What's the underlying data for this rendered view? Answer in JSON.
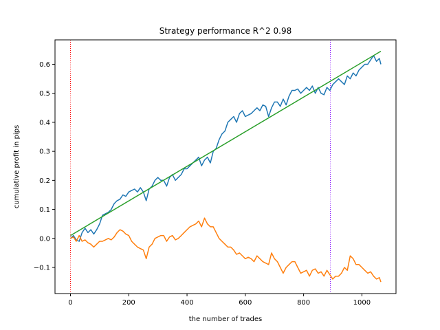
{
  "chart_data": {
    "type": "line",
    "title": "Strategy performance R^2 0.98",
    "xlabel": "the number of trades",
    "ylabel": "cumulative profit in pips",
    "xlim": [
      -53,
      1117
    ],
    "ylim": [
      -0.19,
      0.684
    ],
    "xticks": [
      0,
      200,
      400,
      600,
      800,
      1000
    ],
    "xtick_labels": [
      "0",
      "200",
      "400",
      "600",
      "800",
      "1000"
    ],
    "yticks": [
      -0.1,
      0.0,
      0.1,
      0.2,
      0.3,
      0.4,
      0.5,
      0.6
    ],
    "ytick_labels": [
      "−0.1",
      "0.0",
      "0.1",
      "0.2",
      "0.3",
      "0.4",
      "0.5",
      "0.6"
    ],
    "grid": false,
    "vlines": [
      {
        "x": 0,
        "color": "#ff0000",
        "style": "dotted"
      },
      {
        "x": 892,
        "color": "#8000ff",
        "style": "dotted"
      }
    ],
    "series": [
      {
        "color": "#1f77b4",
        "x": [
          0,
          10,
          20,
          30,
          40,
          50,
          60,
          70,
          80,
          90,
          100,
          110,
          120,
          130,
          140,
          150,
          160,
          170,
          180,
          190,
          200,
          210,
          220,
          230,
          240,
          250,
          260,
          270,
          280,
          290,
          300,
          310,
          320,
          330,
          340,
          350,
          360,
          370,
          380,
          390,
          400,
          410,
          420,
          430,
          440,
          450,
          460,
          470,
          480,
          490,
          500,
          510,
          520,
          530,
          540,
          550,
          560,
          570,
          580,
          590,
          600,
          610,
          620,
          630,
          640,
          650,
          660,
          670,
          680,
          690,
          700,
          710,
          720,
          730,
          740,
          750,
          760,
          770,
          780,
          790,
          800,
          810,
          820,
          830,
          840,
          850,
          860,
          870,
          880,
          890,
          900,
          910,
          920,
          930,
          940,
          950,
          960,
          970,
          980,
          990,
          1000,
          1010,
          1020,
          1030,
          1040,
          1050,
          1060,
          1065
        ],
        "values": [
          0.0,
          0.01,
          -0.005,
          -0.01,
          0.02,
          0.035,
          0.02,
          0.03,
          0.015,
          0.03,
          0.05,
          0.08,
          0.085,
          0.09,
          0.1,
          0.12,
          0.13,
          0.135,
          0.15,
          0.145,
          0.16,
          0.165,
          0.17,
          0.16,
          0.175,
          0.16,
          0.13,
          0.17,
          0.18,
          0.2,
          0.21,
          0.2,
          0.2,
          0.18,
          0.21,
          0.22,
          0.2,
          0.21,
          0.22,
          0.24,
          0.24,
          0.25,
          0.26,
          0.27,
          0.28,
          0.25,
          0.27,
          0.28,
          0.26,
          0.3,
          0.31,
          0.34,
          0.36,
          0.37,
          0.4,
          0.41,
          0.42,
          0.4,
          0.43,
          0.44,
          0.42,
          0.425,
          0.43,
          0.44,
          0.45,
          0.44,
          0.46,
          0.455,
          0.42,
          0.45,
          0.47,
          0.47,
          0.455,
          0.48,
          0.46,
          0.49,
          0.51,
          0.51,
          0.515,
          0.5,
          0.51,
          0.52,
          0.51,
          0.525,
          0.5,
          0.52,
          0.5,
          0.495,
          0.52,
          0.51,
          0.53,
          0.54,
          0.55,
          0.54,
          0.53,
          0.56,
          0.55,
          0.57,
          0.56,
          0.58,
          0.59,
          0.6,
          0.6,
          0.615,
          0.63,
          0.61,
          0.62,
          0.6
        ]
      },
      {
        "color": "#ff7f0e",
        "x": [
          0,
          10,
          20,
          30,
          40,
          50,
          60,
          70,
          80,
          90,
          100,
          110,
          120,
          130,
          140,
          150,
          160,
          170,
          180,
          190,
          200,
          210,
          220,
          230,
          240,
          250,
          260,
          270,
          280,
          290,
          300,
          310,
          320,
          330,
          340,
          350,
          360,
          370,
          380,
          390,
          400,
          410,
          420,
          430,
          440,
          450,
          460,
          470,
          480,
          490,
          500,
          510,
          520,
          530,
          540,
          550,
          560,
          570,
          580,
          590,
          600,
          610,
          620,
          630,
          640,
          650,
          660,
          670,
          680,
          690,
          700,
          710,
          720,
          730,
          740,
          750,
          760,
          770,
          780,
          790,
          800,
          810,
          820,
          830,
          840,
          850,
          860,
          870,
          880,
          890,
          900,
          910,
          920,
          930,
          940,
          950,
          960,
          970,
          980,
          990,
          1000,
          1010,
          1020,
          1030,
          1040,
          1050,
          1060,
          1065
        ],
        "values": [
          0.0,
          0.005,
          -0.01,
          0.01,
          -0.01,
          -0.005,
          -0.015,
          -0.02,
          -0.03,
          -0.02,
          -0.01,
          -0.01,
          -0.005,
          0.0,
          -0.005,
          0.005,
          0.02,
          0.03,
          0.025,
          0.015,
          0.01,
          -0.01,
          -0.02,
          -0.03,
          -0.035,
          -0.04,
          -0.07,
          -0.03,
          -0.02,
          0.0,
          0.005,
          0.01,
          0.01,
          -0.01,
          0.005,
          0.01,
          -0.005,
          0.0,
          0.01,
          0.02,
          0.03,
          0.04,
          0.045,
          0.05,
          0.06,
          0.04,
          0.07,
          0.05,
          0.04,
          0.04,
          0.02,
          0.0,
          -0.01,
          -0.02,
          -0.03,
          -0.03,
          -0.04,
          -0.055,
          -0.05,
          -0.06,
          -0.07,
          -0.065,
          -0.07,
          -0.08,
          -0.06,
          -0.07,
          -0.08,
          -0.085,
          -0.09,
          -0.05,
          -0.07,
          -0.08,
          -0.1,
          -0.12,
          -0.1,
          -0.09,
          -0.08,
          -0.08,
          -0.1,
          -0.12,
          -0.115,
          -0.11,
          -0.13,
          -0.11,
          -0.105,
          -0.12,
          -0.115,
          -0.13,
          -0.11,
          -0.125,
          -0.14,
          -0.13,
          -0.13,
          -0.12,
          -0.1,
          -0.11,
          -0.06,
          -0.07,
          -0.09,
          -0.09,
          -0.1,
          -0.11,
          -0.12,
          -0.115,
          -0.13,
          -0.14,
          -0.135,
          -0.15
        ]
      },
      {
        "color": "#2ca02c",
        "x": [
          0,
          1065
        ],
        "values": [
          0.01,
          0.645
        ]
      }
    ]
  }
}
